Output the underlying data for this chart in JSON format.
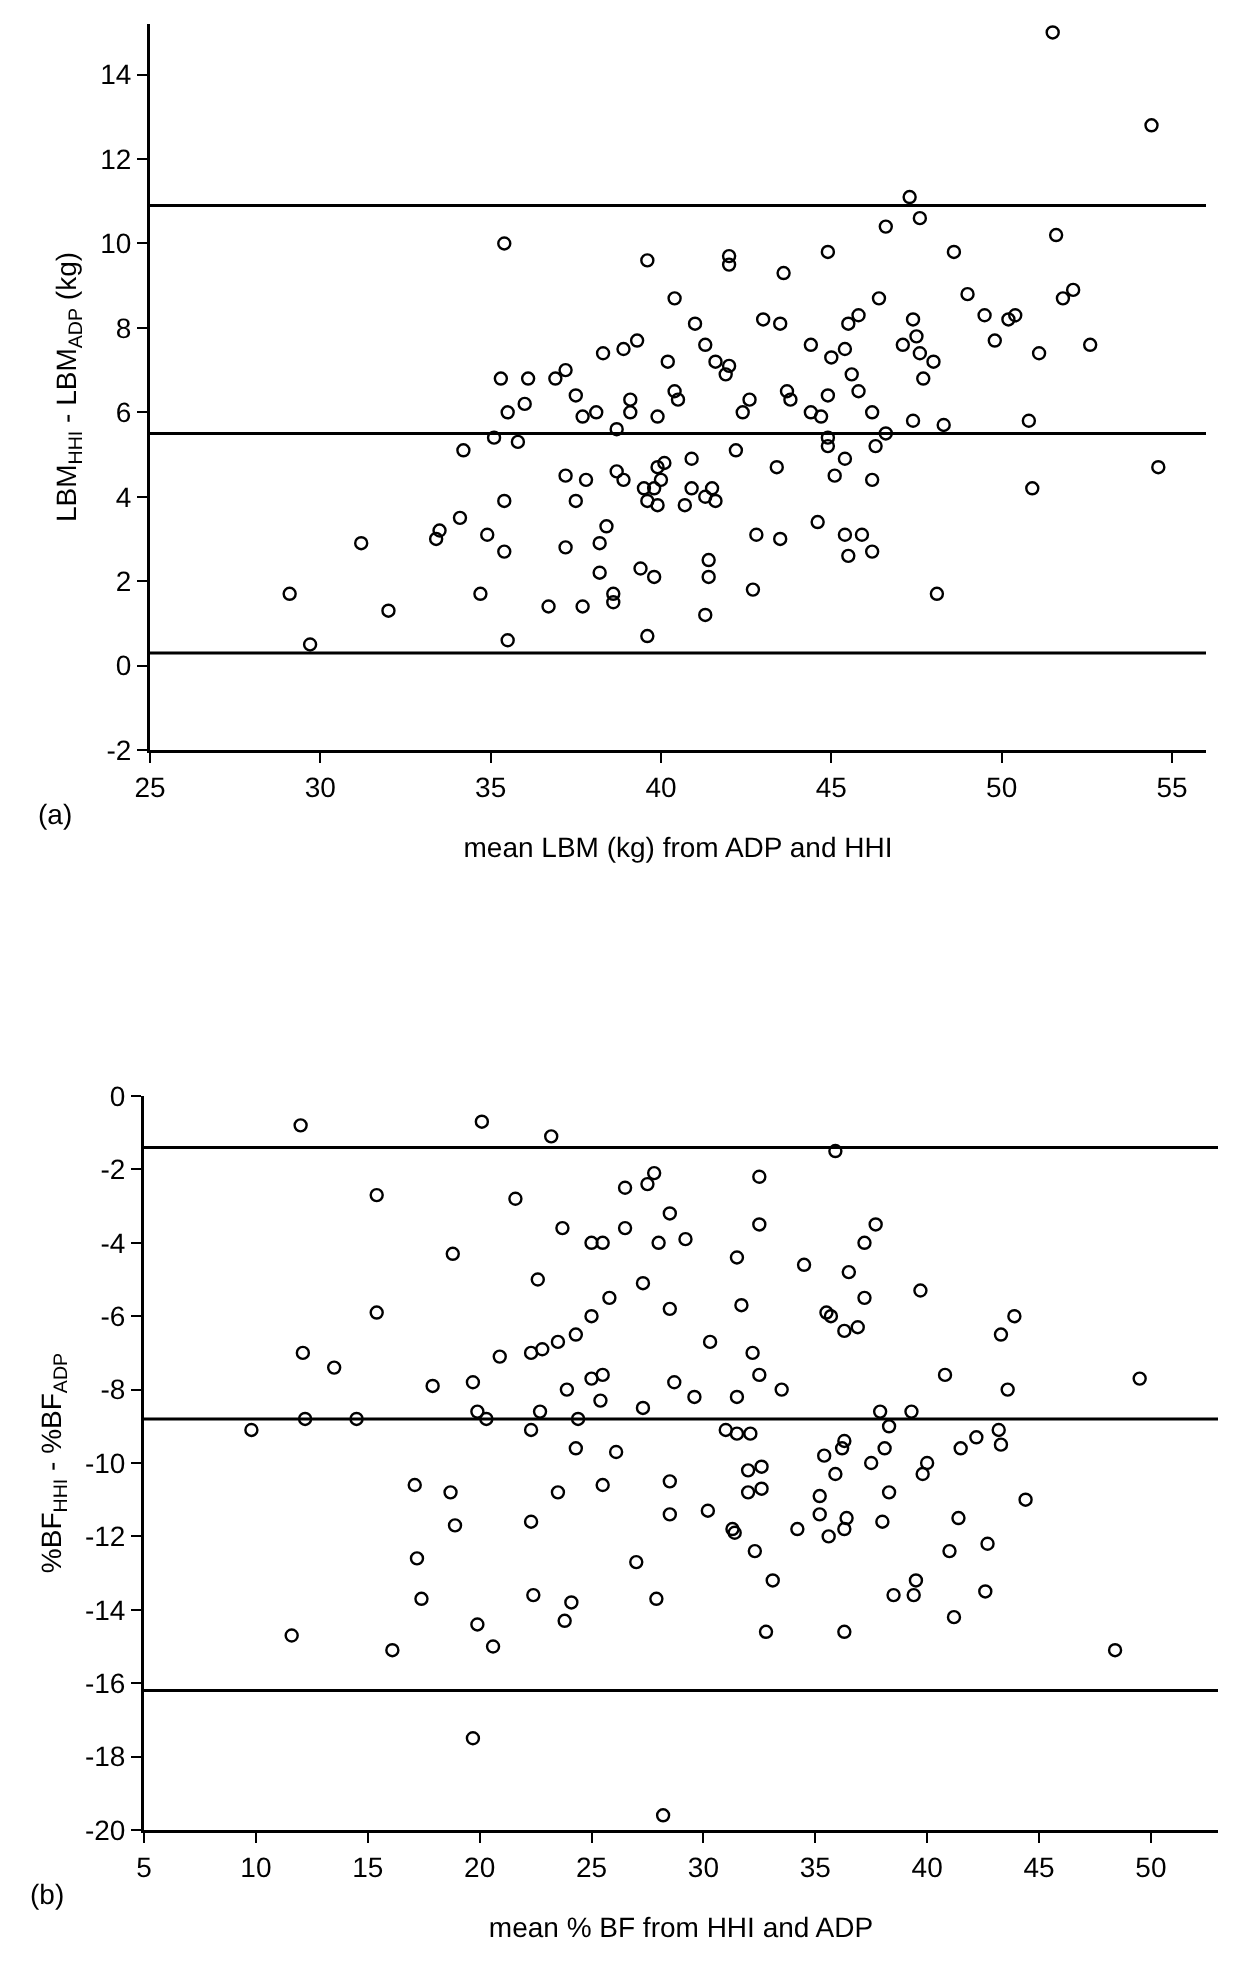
{
  "chart_data": [
    {
      "type": "scatter",
      "xlabel": "mean LBM (kg) from ADP and HHI",
      "ylabel": "LBM$_{HHI}$ - LBM$_{ADP}$ (kg)",
      "annotations": [
        "(a)"
      ],
      "xlim": [
        25,
        56
      ],
      "ylim": [
        -2,
        15.2
      ],
      "xticks": [
        25,
        30,
        35,
        40,
        45,
        50,
        55
      ],
      "yticks": [
        -2,
        0,
        2,
        4,
        6,
        8,
        10,
        12,
        14
      ],
      "grid": false,
      "marker": "circle",
      "ref_lines": [
        {
          "axis": "y",
          "value": 10.9,
          "label": null
        },
        {
          "axis": "y",
          "value": 5.5,
          "label": null
        },
        {
          "axis": "y",
          "value": 0.3,
          "label": null
        }
      ],
      "series": [
        {
          "color": "#000000",
          "x": [
            29.1,
            29.7,
            31.2,
            32.0,
            33.4,
            33.5,
            34.1,
            34.2,
            34.7,
            34.9,
            35.1,
            35.3,
            35.4,
            35.4,
            35.4,
            35.5,
            35.5,
            35.8,
            36.0,
            36.1,
            36.9,
            37.2,
            37.2,
            37.2,
            36.7,
            37.5,
            37.5,
            37.7,
            37.8,
            37.7,
            38.1,
            38.2,
            38.2,
            38.3,
            38.4,
            38.6,
            38.6,
            38.7,
            38.7,
            38.9,
            39.3,
            38.9,
            39.1,
            39.1,
            39.4,
            39.5,
            39.6,
            39.6,
            39.6,
            39.8,
            39.8,
            39.9,
            39.9,
            40.1,
            40.0,
            39.9,
            40.2,
            40.4,
            40.4,
            40.5,
            40.7,
            40.9,
            40.9,
            41.3,
            41.5,
            41.6,
            41.0,
            41.3,
            41.3,
            41.4,
            41.4,
            41.6,
            42.0,
            41.9,
            42.0,
            42.0,
            42.2,
            42.4,
            42.6,
            42.7,
            42.8,
            43.0,
            43.5,
            43.4,
            43.5,
            43.6,
            43.7,
            43.8,
            44.4,
            44.4,
            44.7,
            44.6,
            44.9,
            44.9,
            44.9,
            44.9,
            45.0,
            45.4,
            45.1,
            45.4,
            45.4,
            45.9,
            45.5,
            46.2,
            45.5,
            45.8,
            45.6,
            45.8,
            46.2,
            46.3,
            46.2,
            46.4,
            46.6,
            46.6,
            47.1,
            47.3,
            47.4,
            47.5,
            47.6,
            47.6,
            47.7,
            48.0,
            47.4,
            48.1,
            48.3,
            48.6,
            49.0,
            49.5,
            49.8,
            50.2,
            50.4,
            50.8,
            50.9,
            51.1,
            51.5,
            51.6,
            51.8,
            52.1,
            52.6,
            54.4,
            54.6
          ],
          "values": [
            1.7,
            0.5,
            2.9,
            1.3,
            3.0,
            3.2,
            3.5,
            5.1,
            1.7,
            3.1,
            5.4,
            6.8,
            10.0,
            3.9,
            2.7,
            6.0,
            0.6,
            5.3,
            6.2,
            6.8,
            6.8,
            7.0,
            4.5,
            2.8,
            1.4,
            6.4,
            3.9,
            1.4,
            4.4,
            5.9,
            6.0,
            2.9,
            2.2,
            7.4,
            3.3,
            1.7,
            1.5,
            4.6,
            5.6,
            7.5,
            7.7,
            4.4,
            6.3,
            6.0,
            2.3,
            4.2,
            3.9,
            9.6,
            0.7,
            2.1,
            4.2,
            3.8,
            4.7,
            4.8,
            4.4,
            5.9,
            7.2,
            8.7,
            6.5,
            6.3,
            3.8,
            4.9,
            4.2,
            4.0,
            4.2,
            3.9,
            8.1,
            7.6,
            1.2,
            2.5,
            2.1,
            7.2,
            7.1,
            6.9,
            9.7,
            9.5,
            5.1,
            6.0,
            6.3,
            1.8,
            3.1,
            8.2,
            8.1,
            4.7,
            3.0,
            9.3,
            6.5,
            6.3,
            7.6,
            6.0,
            5.9,
            3.4,
            9.8,
            5.4,
            5.2,
            6.4,
            7.3,
            7.5,
            4.5,
            4.9,
            3.1,
            3.1,
            2.6,
            2.7,
            8.1,
            8.3,
            6.9,
            6.5,
            6.0,
            5.2,
            4.4,
            8.7,
            10.4,
            5.5,
            7.6,
            11.1,
            8.2,
            7.8,
            7.4,
            10.6,
            6.8,
            7.2,
            5.8,
            1.7,
            5.7,
            9.8,
            8.8,
            8.3,
            7.7,
            8.2,
            8.3,
            5.8,
            4.2,
            7.4,
            15.0,
            10.2,
            8.7,
            8.9,
            7.6,
            12.8,
            4.7
          ]
        }
      ]
    },
    {
      "type": "scatter",
      "xlabel": "mean % BF from HHI and ADP",
      "ylabel": "%BF$_{HHI}$ - %BF$_{ADP}$",
      "annotations": [
        "(b)"
      ],
      "xlim": [
        5,
        53
      ],
      "ylim": [
        -20,
        0
      ],
      "xticks": [
        5,
        10,
        15,
        20,
        25,
        30,
        35,
        40,
        45,
        50
      ],
      "yticks": [
        -20,
        -18,
        -16,
        -14,
        -12,
        -10,
        -8,
        -6,
        -4,
        -2,
        0
      ],
      "grid": false,
      "marker": "circle",
      "ref_lines": [
        {
          "axis": "y",
          "value": -1.4,
          "label": null
        },
        {
          "axis": "y",
          "value": -8.8,
          "label": null
        },
        {
          "axis": "y",
          "value": -16.2,
          "label": null
        }
      ],
      "series": [
        {
          "color": "#000000",
          "x": [
            9.8,
            12.0,
            12.1,
            12.2,
            13.5,
            14.5,
            15.4,
            15.4,
            17.1,
            17.9,
            18.8,
            18.7,
            18.9,
            19.7,
            19.9,
            20.1,
            20.3,
            20.9,
            21.6,
            22.3,
            22.3,
            22.6,
            22.3,
            22.7,
            22.8,
            23.2,
            23.5,
            23.5,
            23.7,
            23.9,
            24.3,
            24.3,
            24.4,
            25.0,
            25.5,
            25.0,
            25.0,
            25.4,
            25.5,
            17.2,
            17.4,
            11.6,
            16.1,
            19.7,
            19.9,
            20.6,
            22.4,
            23.8,
            24.1,
            25.5,
            26.1,
            25.8,
            26.5,
            26.5,
            27.3,
            27.5,
            27.8,
            27.3,
            28.0,
            28.5,
            28.5,
            28.5,
            28.7,
            29.2,
            29.6,
            28.5,
            30.2,
            30.3,
            31.0,
            31.5,
            32.1,
            31.5,
            31.5,
            31.7,
            32.0,
            32.6,
            32.0,
            32.6,
            32.2,
            32.5,
            32.5,
            32.5,
            31.3,
            33.5,
            34.5,
            35.2,
            35.2,
            34.2,
            35.5,
            35.7,
            35.4,
            36.2,
            35.9,
            36.3,
            36.3,
            36.9,
            36.5,
            35.9,
            37.2,
            37.2,
            37.7,
            36.4,
            38.0,
            37.5,
            37.9,
            38.3,
            38.1,
            39.3,
            38.3,
            40.0,
            39.8,
            39.7,
            40.8,
            41.4,
            41.5,
            42.2,
            43.2,
            43.3,
            43.3,
            43.9,
            43.6,
            44.4,
            49.5,
            27.0,
            27.9,
            31.4,
            32.3,
            33.1,
            32.8,
            35.6,
            36.3,
            36.3,
            38.5,
            39.4,
            39.5,
            41.0,
            41.2,
            42.6,
            42.7,
            48.4,
            28.2
          ],
          "values": [
            -9.1,
            -0.8,
            -7.0,
            -8.8,
            -7.4,
            -8.8,
            -2.7,
            -5.9,
            -10.6,
            -7.9,
            -4.3,
            -10.8,
            -11.7,
            -7.8,
            -8.6,
            -0.7,
            -8.8,
            -7.1,
            -2.8,
            -7.0,
            -9.1,
            -5.0,
            -11.6,
            -8.6,
            -6.9,
            -1.1,
            -6.7,
            -10.8,
            -3.6,
            -8.0,
            -9.6,
            -6.5,
            -8.8,
            -4.0,
            -4.0,
            -6.0,
            -7.7,
            -8.3,
            -10.6,
            -12.6,
            -13.7,
            -14.7,
            -15.1,
            -17.5,
            -14.4,
            -15.0,
            -13.6,
            -14.3,
            -13.8,
            -7.6,
            -9.7,
            -5.5,
            -3.6,
            -2.5,
            -5.1,
            -2.4,
            -2.1,
            -8.5,
            -4.0,
            -3.2,
            -5.8,
            -10.5,
            -7.8,
            -3.9,
            -8.2,
            -11.4,
            -11.3,
            -6.7,
            -9.1,
            -9.2,
            -9.2,
            -4.4,
            -8.2,
            -5.7,
            -10.2,
            -10.1,
            -10.8,
            -10.7,
            -7.0,
            -7.6,
            -3.5,
            -2.2,
            -11.8,
            -8.0,
            -4.6,
            -10.9,
            -11.4,
            -11.8,
            -5.9,
            -6.0,
            -9.8,
            -9.6,
            -10.3,
            -9.4,
            -6.4,
            -6.3,
            -4.8,
            -1.5,
            -5.5,
            -4.0,
            -3.5,
            -11.5,
            -11.6,
            -10.0,
            -8.6,
            -9.0,
            -9.6,
            -8.6,
            -10.8,
            -10.0,
            -10.3,
            -5.3,
            -7.6,
            -11.5,
            -9.6,
            -9.3,
            -9.1,
            -9.5,
            -6.5,
            -6.0,
            -8.0,
            -11.0,
            -7.7,
            -12.7,
            -13.7,
            -11.9,
            -12.4,
            -13.2,
            -14.6,
            -12.0,
            -11.8,
            -14.6,
            -13.6,
            -13.6,
            -13.2,
            -12.4,
            -14.2,
            -13.5,
            -12.2,
            -15.1,
            -19.6
          ]
        }
      ]
    }
  ]
}
